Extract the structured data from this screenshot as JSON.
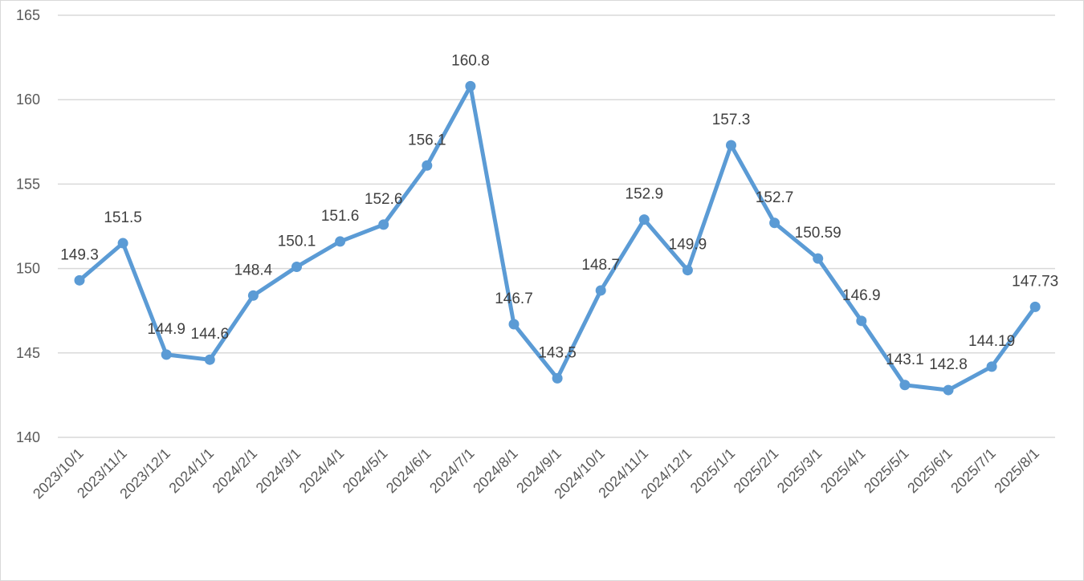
{
  "chart_data": {
    "type": "line",
    "title": "",
    "xlabel": "",
    "ylabel": "",
    "ylim": [
      140,
      165
    ],
    "y_ticks": [
      140,
      145,
      150,
      155,
      160,
      165
    ],
    "grid": true,
    "legend": "none",
    "colors": {
      "line": "#5b9bd5",
      "grid": "#d9d9d9",
      "text": "#595959"
    },
    "categories": [
      "2023/10/1",
      "2023/11/1",
      "2023/12/1",
      "2024/1/1",
      "2024/2/1",
      "2024/3/1",
      "2024/4/1",
      "2024/5/1",
      "2024/6/1",
      "2024/7/1",
      "2024/8/1",
      "2024/9/1",
      "2024/10/1",
      "2024/11/1",
      "2024/12/1",
      "2025/1/1",
      "2025/2/1",
      "2025/3/1",
      "2025/4/1",
      "2025/5/1",
      "2025/6/1",
      "2025/7/1",
      "2025/8/1"
    ],
    "values": [
      149.3,
      151.5,
      144.9,
      144.6,
      148.4,
      150.1,
      151.6,
      152.6,
      156.1,
      160.8,
      146.7,
      143.5,
      148.7,
      152.9,
      149.9,
      157.3,
      152.7,
      150.59,
      146.9,
      143.1,
      142.8,
      144.19,
      147.73
    ],
    "labels": [
      "149.3",
      "151.5",
      "144.9",
      "144.6",
      "148.4",
      "150.1",
      "151.6",
      "152.6",
      "156.1",
      "160.8",
      "146.7",
      "143.5",
      "148.7",
      "152.9",
      "149.9",
      "157.3",
      "152.7",
      "150.59",
      "146.9",
      "143.1",
      "142.8",
      "144.19",
      "147.73"
    ]
  }
}
